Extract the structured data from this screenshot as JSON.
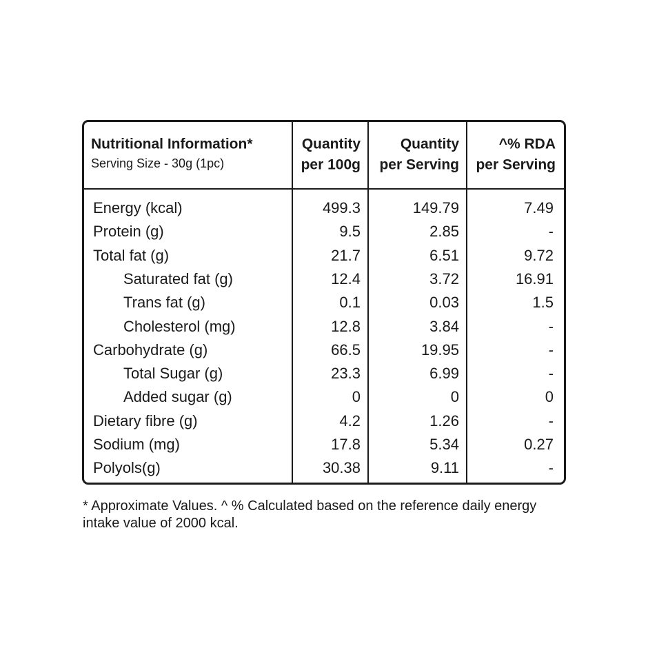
{
  "table": {
    "title": "Nutritional Information*",
    "subtitle": "Serving Size - 30g (1pc)",
    "columns": [
      [
        "Quantity",
        "per 100g"
      ],
      [
        "Quantity",
        "per Serving"
      ],
      [
        "^% RDA",
        "per Serving"
      ]
    ],
    "rows": [
      [
        "Energy (kcal)",
        499.3,
        149.79,
        7.49
      ],
      [
        "Protein (g)",
        9.5,
        2.85,
        "-"
      ],
      [
        "Total fat (g)",
        21.7,
        6.51,
        9.72
      ],
      [
        "Saturated fat (g)",
        12.4,
        3.72,
        16.91
      ],
      [
        "Trans fat (g)",
        0.1,
        0.03,
        1.5
      ],
      [
        "Cholesterol (mg)",
        12.8,
        3.84,
        "-"
      ],
      [
        "Carbohydrate (g)",
        66.5,
        19.95,
        "-"
      ],
      [
        "Total Sugar (g)",
        23.3,
        6.99,
        "-"
      ],
      [
        "Added sugar (g)",
        0,
        0,
        0
      ],
      [
        "Dietary fibre (g)",
        4.2,
        1.26,
        "-"
      ],
      [
        "Sodium (mg)",
        17.8,
        5.34,
        0.27
      ],
      [
        "Polyols(g)",
        30.38,
        9.11,
        "-"
      ]
    ]
  },
  "footnote": [
    "* Approximate Values. ^ % Calculated based on the reference daily energy",
    "intake value of 2000 kcal."
  ]
}
